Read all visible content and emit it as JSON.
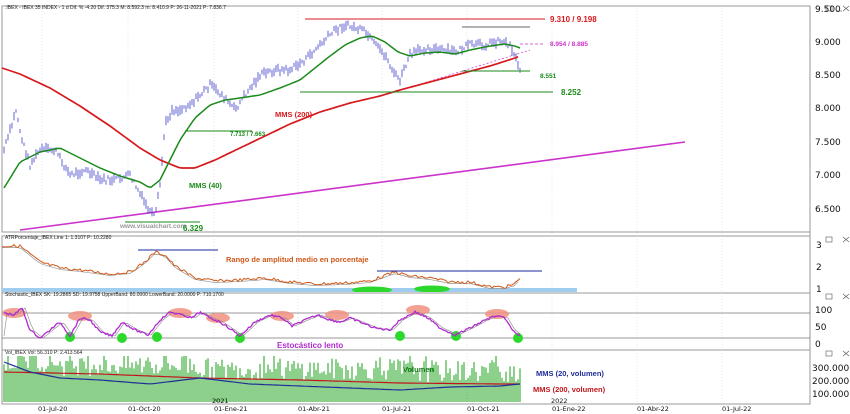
{
  "header": {
    "main_info": ".IBEX - IBEX 35 INDEX - 1 d Dif. % -4.20 Dif. 375.3 M: 8.592.3 m: 8.410.9 P: 26-11-2021 P: 7.836.7",
    "atr_info": "ATRPorcentaje_IBEX Line 1: 1.3107 P: 10.2280",
    "stoch_info": "Stochastic_IBEX SK: 19.2865 SD: 19.9758 UpperBand: 80.0000 LowerBand: 20.0000 P: 710.1700",
    "vol_info": "Vol_IBEX Vol: 56.310 P: 2.413.564"
  },
  "watermark": "www.visualchart.com",
  "annotations": {
    "resistance": "9.310 / 9.198",
    "r2": "8.954 / 8.885",
    "s1": "8.551",
    "s2": "8.252",
    "s3": "7.713 / 7.663",
    "s4": "6.329",
    "mms200": "MMS (200)",
    "mms40": "MMS (40)",
    "atr_label": "Rango de amplitud medio en porcentaje",
    "stoch_label": "Estocástico lento",
    "vol_label": "Volumen",
    "vol_mms20": "MMS (20, volumen)",
    "vol_mms200": "MMS (200, volumen)"
  },
  "axis": {
    "price_ticks": [
      "9.500",
      "9.000",
      "8.500",
      "8.000",
      "7.500",
      "7.000",
      "6.500"
    ],
    "atr_ticks": [
      "3",
      "2",
      "1"
    ],
    "stoch_ticks": [
      "100",
      "50",
      "0"
    ],
    "vol_ticks": [
      "300.000",
      "200.000",
      "100.000"
    ],
    "x_ticks": [
      "01-Jul-20",
      "01-Oct-20",
      "01-Ene-21",
      "01-Abr-21",
      "01-Jul-21",
      "01-Oct-21",
      "01-Ene-22",
      "01-Abr-22",
      "01-Jul-22"
    ],
    "year_labels": [
      "2021",
      "2022"
    ]
  },
  "colors": {
    "price": "#3d3dc8",
    "mms200": "#d8191c",
    "mms40": "#1a8a1a",
    "trend": "#cc33cc",
    "annotation_red": "#d8191c",
    "annotation_green": "#1a8a1a",
    "atr_line": "#d0581a",
    "stoch_line": "#b02bd0",
    "vol_bars": "#2fa82f",
    "vol_mms20": "#1f2d9a",
    "vol_mms200": "#c0161a"
  },
  "chart_data": [
    {
      "type": "line",
      "title": "IBEX 35 INDEX",
      "x": [
        "01-Jul-20",
        "01-Oct-20",
        "01-Ene-21",
        "01-Abr-21",
        "01-Jul-21",
        "01-Oct-21"
      ],
      "series": [
        {
          "name": "IBEX 35",
          "values": [
            7400,
            6750,
            8100,
            8650,
            8850,
            8950
          ]
        },
        {
          "name": "MMS (200)",
          "values": [
            8200,
            7150,
            7600,
            8100,
            8550,
            8850
          ]
        },
        {
          "name": "MMS (40)",
          "values": [
            7450,
            7000,
            8150,
            8550,
            9000,
            8950
          ]
        }
      ],
      "ylim": [
        6000,
        9500
      ]
    },
    {
      "type": "line",
      "title": "Rango de amplitud medio en porcentaje",
      "x": [
        "01-Jul-20",
        "01-Oct-20",
        "01-Ene-21",
        "01-Abr-21",
        "01-Jul-21",
        "01-Oct-21"
      ],
      "series": [
        {
          "name": "ATRPorcentaje",
          "values": [
            2.6,
            2.5,
            1.6,
            1.5,
            1.6,
            1.3
          ]
        }
      ],
      "ylim": [
        1,
        3
      ]
    },
    {
      "type": "line",
      "title": "Estocástico lento",
      "x": [
        "01-Jul-20",
        "01-Oct-20",
        "01-Ene-21",
        "01-Abr-21",
        "01-Jul-21",
        "01-Oct-21"
      ],
      "series": [
        {
          "name": "Stochastic",
          "values": [
            80,
            20,
            70,
            85,
            25,
            20
          ]
        }
      ],
      "ylim": [
        0,
        100
      ]
    },
    {
      "type": "bar",
      "title": "Volumen",
      "x": [
        "01-Jul-20",
        "01-Oct-20",
        "01-Ene-21",
        "01-Abr-21",
        "01-Jul-21",
        "01-Oct-21"
      ],
      "series": [
        {
          "name": "Volumen",
          "values": [
            250000,
            240000,
            230000,
            200000,
            170000,
            160000
          ]
        },
        {
          "name": "MMS (20, volumen)",
          "values": [
            230000,
            220000,
            200000,
            180000,
            150000,
            160000
          ]
        },
        {
          "name": "MMS (200, volumen)",
          "values": [
            260000,
            240000,
            220000,
            200000,
            180000,
            170000
          ]
        }
      ],
      "ylim": [
        0,
        350000
      ]
    }
  ]
}
